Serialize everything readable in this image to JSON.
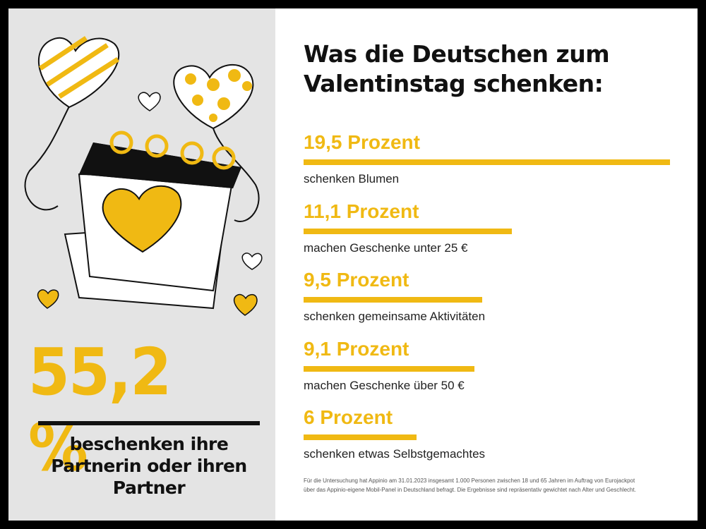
{
  "headline": {
    "value": "55,2 %",
    "text": "beschenken ihre Partnerin oder ihren Partner"
  },
  "title": "Was die Deutschen zum Valentinstag schenken:",
  "chart_data": {
    "type": "bar",
    "orientation": "horizontal",
    "title": "Was die Deutschen zum Valentinstag schenken:",
    "unit": "Prozent",
    "items": [
      {
        "value_label": "19,5 Prozent",
        "value": 19.5,
        "label": "schenken Blumen"
      },
      {
        "value_label": "11,1 Prozent",
        "value": 11.1,
        "label": "machen Geschenke unter 25 €"
      },
      {
        "value_label": "9,5 Prozent",
        "value": 9.5,
        "label": "schenken gemeinsame Aktivitäten"
      },
      {
        "value_label": "9,1 Prozent",
        "value": 9.1,
        "label": "machen Geschenke über 50 €"
      },
      {
        "value_label": "6 Prozent",
        "value": 6,
        "label": "schenken etwas Selbstgemachtes"
      }
    ],
    "bar_color": "#f0b913"
  },
  "footnote": {
    "line1": "Für die Untersuchung hat Appinio am 31.01.2023 insgesamt 1.000 Personen zwischen 18 und 65 Jahren im Auftrag von Eurojackpot",
    "line2": "über das Appinio-eigene Mobil-Panel in Deutschland befragt. Die Ergebnisse sind repräsentativ gewichtet nach Alter und Geschlecht."
  }
}
